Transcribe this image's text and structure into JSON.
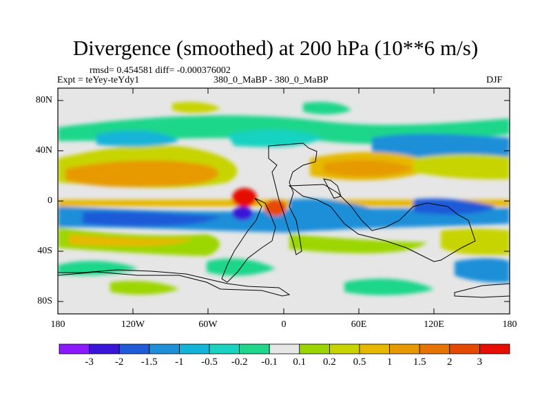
{
  "title": "Divergence (smoothed) at 200 hPa (10**6 m/s)",
  "stats": "rmsd= 0.454581 diff= -0.000376002",
  "experiment": "Expt = teYey-teYdy1",
  "comparison": "380_0_MaBP - 380_0_MaBP",
  "season": "DJF",
  "y_ticks": [
    {
      "label": "80N",
      "lat": 80
    },
    {
      "label": "40N",
      "lat": 40
    },
    {
      "label": "0",
      "lat": 0
    },
    {
      "label": "40S",
      "lat": -40
    },
    {
      "label": "80S",
      "lat": -80
    }
  ],
  "x_ticks": [
    {
      "label": "180",
      "lon": -180
    },
    {
      "label": "120W",
      "lon": -120
    },
    {
      "label": "60W",
      "lon": -60
    },
    {
      "label": "0",
      "lon": 0
    },
    {
      "label": "60E",
      "lon": 60
    },
    {
      "label": "120E",
      "lon": 120
    },
    {
      "label": "180",
      "lon": 180
    }
  ],
  "colorbar": {
    "colors": [
      "#8c1aff",
      "#3a14d8",
      "#1f5ad8",
      "#1f8fd8",
      "#14b4d8",
      "#19d2c0",
      "#1fd68a",
      "#e6e6e6",
      "#9cd600",
      "#c8d400",
      "#e6b800",
      "#e69a00",
      "#e67200",
      "#e64a00",
      "#e60e00"
    ],
    "labels": [
      "-3",
      "-2",
      "-1.5",
      "-1",
      "-0.5",
      "-0.2",
      "-0.1",
      "0.1",
      "0.2",
      "0.5",
      "1",
      "1.5",
      "2",
      "3"
    ]
  },
  "chart_data": {
    "type": "heatmap",
    "title": "Divergence (smoothed) at 200 hPa (10**6 m/s)",
    "units": "10**6 m/s",
    "lon_range": [
      -180,
      180
    ],
    "lat_range": [
      -90,
      90
    ],
    "levels": [
      -3,
      -2,
      -1.5,
      -1,
      -0.5,
      -0.2,
      -0.1,
      0.1,
      0.2,
      0.5,
      1,
      1.5,
      2,
      3
    ],
    "features": [
      {
        "lon": -32,
        "lat": 3,
        "value": 3.2
      },
      {
        "lon": -25,
        "lat": -5,
        "value": 2.0
      },
      {
        "lon": -35,
        "lat": -8,
        "value": -2.6
      },
      {
        "lon": -100,
        "lat": -15,
        "value": -1.5
      },
      {
        "lon": -150,
        "lat": -12,
        "value": -1.0
      },
      {
        "lon": -130,
        "lat": 20,
        "value": 1.2
      },
      {
        "lon": -60,
        "lat": 20,
        "value": 1.0
      },
      {
        "lon": 20,
        "lat": -10,
        "value": -1.0
      },
      {
        "lon": 60,
        "lat": -15,
        "value": -1.0
      },
      {
        "lon": 130,
        "lat": -5,
        "value": -0.8
      },
      {
        "lon": 80,
        "lat": 25,
        "value": 1.0
      },
      {
        "lon": 150,
        "lat": 35,
        "value": 0.6
      },
      {
        "lon": -80,
        "lat": 45,
        "value": -0.5
      },
      {
        "lon": 0,
        "lat": 40,
        "value": -0.5
      },
      {
        "lon": 100,
        "lat": 45,
        "value": -0.5
      },
      {
        "lon": -110,
        "lat": -40,
        "value": 0.6
      },
      {
        "lon": 165,
        "lat": -40,
        "value": 0.4
      }
    ]
  }
}
